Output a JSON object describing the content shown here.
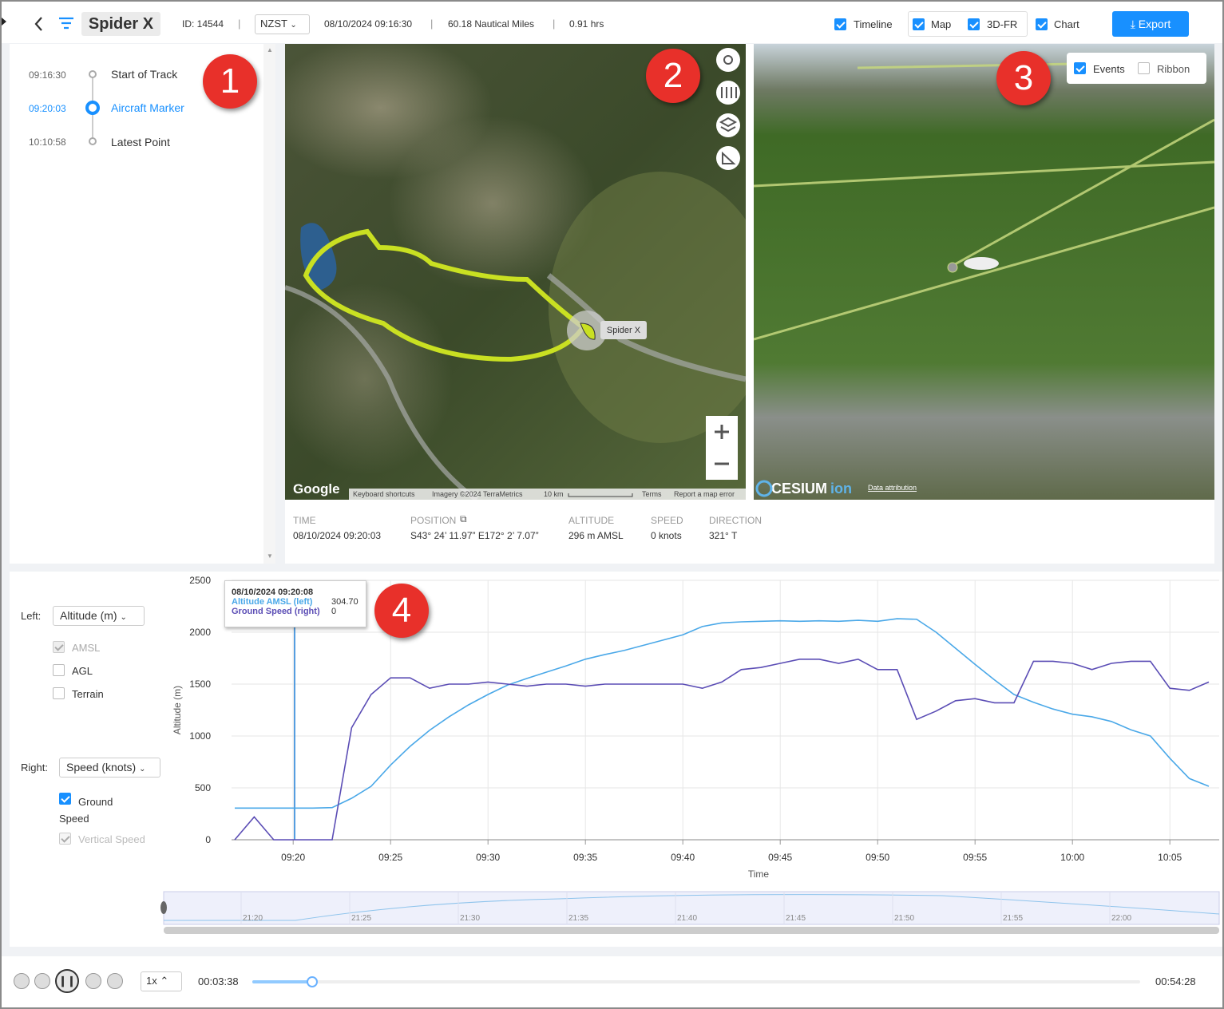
{
  "header": {
    "title": "Spider X",
    "id": "ID: 14544",
    "separator": "|",
    "timezone": "NZST",
    "start": "08/10/2024 09:16:30",
    "distance": "60.18 Nautical Miles",
    "duration": "0.91 hrs",
    "toggles": [
      "Timeline",
      "Map",
      "3D-FR",
      "Chart"
    ],
    "export": "Export"
  },
  "timeline": [
    {
      "time": "09:16:30",
      "label": "Start of Track"
    },
    {
      "time": "09:20:03",
      "label": "Aircraft Marker"
    },
    {
      "time": "10:10:58",
      "label": "Latest Point"
    }
  ],
  "callouts": [
    "1",
    "2",
    "3",
    "4"
  ],
  "map": {
    "marker": "Spider X",
    "logo": "Google",
    "attribution": [
      "Keyboard shortcuts",
      "Imagery ©2024 TerraMetrics",
      "10 km",
      "Terms",
      "Report a map error"
    ]
  },
  "info": [
    {
      "label": "TIME",
      "value": "08/10/2024 09:20:03"
    },
    {
      "label": "POSITION",
      "value": "S43° 24’ 11.97” E172° 2’ 7.07”"
    },
    {
      "label": "ALTITUDE",
      "value": "296 m AMSL"
    },
    {
      "label": "SPEED",
      "value": "0 knots"
    },
    {
      "label": "DIRECTION",
      "value": "321° T"
    }
  ],
  "view3d": {
    "options": [
      "Events",
      "Ribbon"
    ],
    "logo": "CESIUM",
    "logo_suffix": "ion",
    "attribution": "Data attribution"
  },
  "controls": {
    "left_label": "Left:",
    "left_select": "Altitude (m)",
    "left_options": [
      "AMSL",
      "AGL",
      "Terrain"
    ],
    "right_label": "Right:",
    "right_select": "Speed (knots)",
    "right_options": [
      "Ground Speed",
      "Vertical Speed"
    ]
  },
  "tooltip": {
    "time": "08/10/2024 09:20:08",
    "values": [
      "304.70",
      "0"
    ]
  },
  "chart_data": {
    "type": "line",
    "ylabel": "Altitude (m)",
    "xlabel": "Time",
    "categories": [
      null,
      null,
      null,
      "09:20",
      null,
      null,
      null,
      null,
      "09:25",
      null,
      null,
      null,
      null,
      "09:30",
      null,
      null,
      null,
      null,
      "09:35",
      null,
      null,
      null,
      null,
      "09:40",
      null,
      null,
      null,
      null,
      "09:45",
      null,
      null,
      null,
      null,
      "09:50",
      null,
      null,
      null,
      null,
      "09:55",
      null,
      null,
      null,
      null,
      "10:00",
      null,
      null,
      null,
      null,
      "10:05",
      null,
      null
    ],
    "ylim": [
      0,
      2500
    ],
    "yticks": [
      0,
      500,
      1000,
      1500,
      2000,
      2500
    ],
    "y2lim": [
      0,
      125
    ],
    "grid": true,
    "series": [
      {
        "name": "Altitude AMSL (left)",
        "color": "#4aa8e8",
        "values": [
          305,
          305,
          305,
          305,
          305,
          310,
          400,
          515,
          720,
          900,
          1055,
          1185,
          1300,
          1400,
          1490,
          1555,
          1615,
          1675,
          1740,
          1785,
          1825,
          1875,
          1925,
          1975,
          2055,
          2090,
          2100,
          2105,
          2110,
          2105,
          2110,
          2105,
          2115,
          2105,
          2130,
          2125,
          2000,
          1845,
          1690,
          1540,
          1400,
          1325,
          1260,
          1210,
          1185,
          1140,
          1060,
          1000,
          785,
          590,
          515
        ]
      },
      {
        "name": "Ground Speed (right)",
        "color": "#5b4db5",
        "axis": "y2",
        "values": [
          0,
          11,
          0,
          0,
          0,
          0,
          54,
          70,
          78,
          78,
          73,
          75,
          75,
          76,
          75,
          74,
          75,
          75,
          74,
          75,
          75,
          75,
          75,
          75,
          73,
          76,
          82,
          83,
          85,
          87,
          87,
          85,
          87,
          82,
          82,
          58,
          62,
          67,
          68,
          66,
          66,
          86,
          86,
          85,
          82,
          85,
          86,
          86,
          73,
          72,
          76
        ]
      }
    ],
    "navigator_labels": [
      "21:20",
      "21:25",
      "21:30",
      "21:35",
      "21:40",
      "21:45",
      "21:50",
      "21:55",
      "22:00"
    ]
  },
  "player": {
    "rate": "1x",
    "elapsed": "00:03:38",
    "total": "00:54:28"
  }
}
